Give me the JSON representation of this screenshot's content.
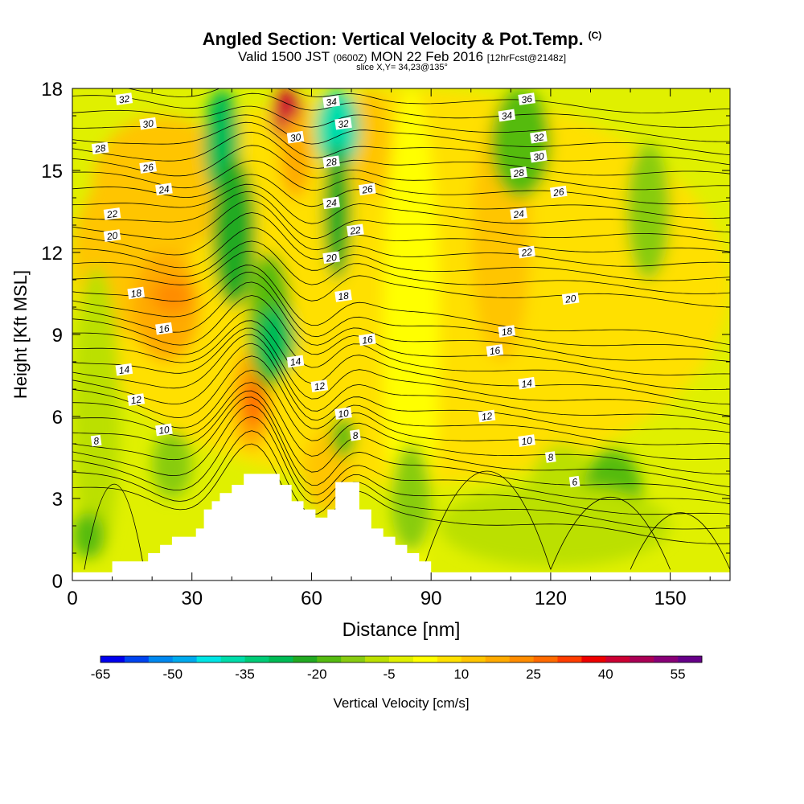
{
  "header": {
    "title": "Angled Section: Vertical Velocity & Pot.Temp.",
    "copyright": "(C)",
    "valid_a": "Valid 1500 JST",
    "valid_z": "(0600Z)",
    "valid_b": "MON 22 Feb 2016",
    "valid_c": "[12hrFcst@2148z]",
    "slice": "slice X,Y= 34,23@135°"
  },
  "chart_data": {
    "type": "heatmap",
    "title": "Angled Section: Vertical Velocity & Pot.Temp.",
    "xlabel": "Distance [nm]",
    "ylabel": "Height [Kft MSL]",
    "xlim": [
      0,
      165
    ],
    "ylim": [
      0,
      18
    ],
    "x_ticks": [
      "0",
      "30",
      "60",
      "90",
      "120",
      "150"
    ],
    "y_ticks": [
      "0",
      "3",
      "6",
      "9",
      "12",
      "15",
      "18"
    ],
    "colorbar": {
      "label": "Vertical Velocity [cm/s]",
      "tick_labels": [
        "-65",
        "-50",
        "-35",
        "-20",
        "-5",
        "10",
        "25",
        "40",
        "55"
      ],
      "min": -65,
      "step": 5,
      "colors": [
        "#0000ee",
        "#0044f0",
        "#0088f0",
        "#00aaee",
        "#00e5e5",
        "#00ddaa",
        "#00cc77",
        "#00bb55",
        "#22aa22",
        "#55bb11",
        "#88cc11",
        "#bbe000",
        "#e0f000",
        "#ffff00",
        "#ffe000",
        "#ffc500",
        "#ffaa00",
        "#ff8c00",
        "#ff6a00",
        "#ff3c00",
        "#ee0000",
        "#cc0033",
        "#aa0055",
        "#880077",
        "#660088"
      ]
    },
    "terrain": [
      [
        10,
        0.7
      ],
      [
        19,
        0.7
      ],
      [
        19,
        1.0
      ],
      [
        22,
        1.0
      ],
      [
        22,
        1.3
      ],
      [
        25,
        1.3
      ],
      [
        25,
        1.6
      ],
      [
        31,
        1.6
      ],
      [
        31,
        1.9
      ],
      [
        33,
        1.9
      ],
      [
        33,
        2.6
      ],
      [
        35,
        2.6
      ],
      [
        35,
        2.9
      ],
      [
        37,
        2.9
      ],
      [
        37,
        3.2
      ],
      [
        40,
        3.2
      ],
      [
        40,
        3.5
      ],
      [
        43,
        3.5
      ],
      [
        43,
        3.9
      ],
      [
        52,
        3.9
      ],
      [
        52,
        3.5
      ],
      [
        55,
        3.5
      ],
      [
        55,
        2.9
      ],
      [
        58,
        2.9
      ],
      [
        58,
        2.6
      ],
      [
        61,
        2.6
      ],
      [
        61,
        2.3
      ],
      [
        64,
        2.3
      ],
      [
        64,
        2.6
      ],
      [
        66,
        2.6
      ],
      [
        66,
        3.6
      ],
      [
        72,
        3.6
      ],
      [
        72,
        2.6
      ],
      [
        75,
        2.6
      ],
      [
        75,
        1.9
      ],
      [
        78,
        1.9
      ],
      [
        78,
        1.6
      ],
      [
        81,
        1.6
      ],
      [
        81,
        1.3
      ],
      [
        84,
        1.3
      ],
      [
        84,
        1.0
      ],
      [
        87,
        1.0
      ],
      [
        87,
        0.7
      ],
      [
        90,
        0.7
      ]
    ],
    "potential_temperature_labels": [
      {
        "text": "32",
        "x": 13,
        "y": 17.6
      },
      {
        "text": "30",
        "x": 19,
        "y": 16.7
      },
      {
        "text": "28",
        "x": 7,
        "y": 15.8
      },
      {
        "text": "26",
        "x": 19,
        "y": 15.1
      },
      {
        "text": "24",
        "x": 23,
        "y": 14.3
      },
      {
        "text": "22",
        "x": 10,
        "y": 13.4
      },
      {
        "text": "20",
        "x": 10,
        "y": 12.6
      },
      {
        "text": "18",
        "x": 16,
        "y": 10.5
      },
      {
        "text": "16",
        "x": 23,
        "y": 9.2
      },
      {
        "text": "14",
        "x": 13,
        "y": 7.7
      },
      {
        "text": "12",
        "x": 16,
        "y": 6.6
      },
      {
        "text": "10",
        "x": 23,
        "y": 5.5
      },
      {
        "text": "8",
        "x": 6,
        "y": 5.1
      },
      {
        "text": "34",
        "x": 65,
        "y": 17.5
      },
      {
        "text": "32",
        "x": 68,
        "y": 16.7
      },
      {
        "text": "30",
        "x": 56,
        "y": 16.2
      },
      {
        "text": "28",
        "x": 65,
        "y": 15.3
      },
      {
        "text": "26",
        "x": 74,
        "y": 14.3
      },
      {
        "text": "24",
        "x": 65,
        "y": 13.8
      },
      {
        "text": "22",
        "x": 71,
        "y": 12.8
      },
      {
        "text": "20",
        "x": 65,
        "y": 11.8
      },
      {
        "text": "18",
        "x": 68,
        "y": 10.4
      },
      {
        "text": "16",
        "x": 74,
        "y": 8.8
      },
      {
        "text": "14",
        "x": 56,
        "y": 8.0
      },
      {
        "text": "12",
        "x": 62,
        "y": 7.1
      },
      {
        "text": "10",
        "x": 68,
        "y": 6.1
      },
      {
        "text": "8",
        "x": 71,
        "y": 5.3
      },
      {
        "text": "36",
        "x": 114,
        "y": 17.6
      },
      {
        "text": "34",
        "x": 109,
        "y": 17.0
      },
      {
        "text": "32",
        "x": 117,
        "y": 16.2
      },
      {
        "text": "30",
        "x": 117,
        "y": 15.5
      },
      {
        "text": "28",
        "x": 112,
        "y": 14.9
      },
      {
        "text": "26",
        "x": 122,
        "y": 14.2
      },
      {
        "text": "24",
        "x": 112,
        "y": 13.4
      },
      {
        "text": "22",
        "x": 114,
        "y": 12.0
      },
      {
        "text": "20",
        "x": 125,
        "y": 10.3
      },
      {
        "text": "18",
        "x": 109,
        "y": 9.1
      },
      {
        "text": "16",
        "x": 106,
        "y": 8.4
      },
      {
        "text": "14",
        "x": 114,
        "y": 7.2
      },
      {
        "text": "12",
        "x": 104,
        "y": 6.0
      },
      {
        "text": "10",
        "x": 114,
        "y": 5.1
      },
      {
        "text": "8",
        "x": 120,
        "y": 4.5
      },
      {
        "text": "6",
        "x": 126,
        "y": 3.6
      }
    ]
  }
}
